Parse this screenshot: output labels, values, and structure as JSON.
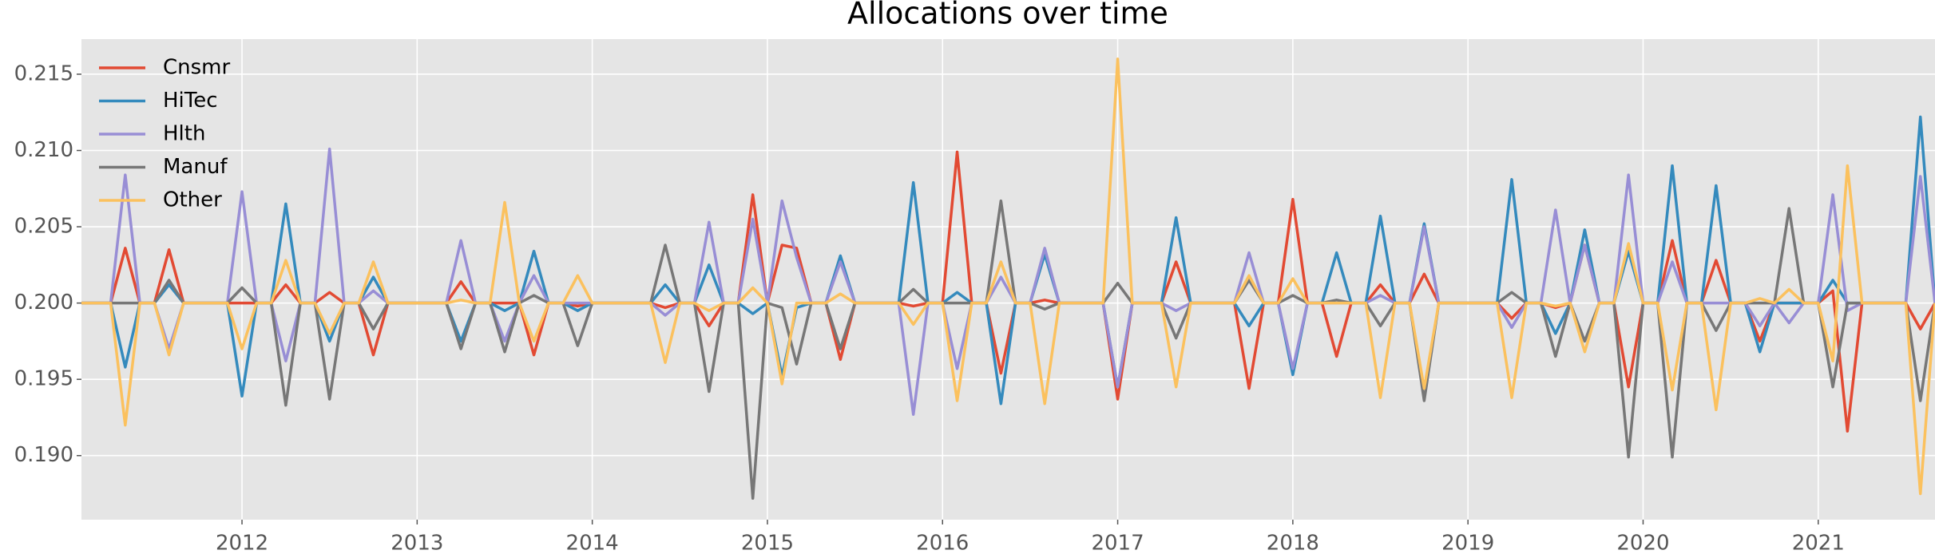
{
  "chart_data": {
    "type": "line",
    "title": "Allocations over time",
    "x": [
      "2011-02",
      "2011-03",
      "2011-04",
      "2011-05",
      "2011-06",
      "2011-07",
      "2011-08",
      "2011-09",
      "2011-10",
      "2011-11",
      "2011-12",
      "2012-01",
      "2012-02",
      "2012-03",
      "2012-04",
      "2012-05",
      "2012-06",
      "2012-07",
      "2012-08",
      "2012-09",
      "2012-10",
      "2012-11",
      "2012-12",
      "2013-01",
      "2013-02",
      "2013-03",
      "2013-04",
      "2013-05",
      "2013-06",
      "2013-07",
      "2013-08",
      "2013-09",
      "2013-10",
      "2013-11",
      "2013-12",
      "2014-01",
      "2014-02",
      "2014-03",
      "2014-04",
      "2014-05",
      "2014-06",
      "2014-07",
      "2014-08",
      "2014-09",
      "2014-10",
      "2014-11",
      "2014-12",
      "2015-01",
      "2015-02",
      "2015-03",
      "2015-04",
      "2015-05",
      "2015-06",
      "2015-07",
      "2015-08",
      "2015-09",
      "2015-10",
      "2015-11",
      "2015-12",
      "2016-01",
      "2016-02",
      "2016-03",
      "2016-04",
      "2016-05",
      "2016-06",
      "2016-07",
      "2016-08",
      "2016-09",
      "2016-10",
      "2016-11",
      "2016-12",
      "2017-01",
      "2017-02",
      "2017-03",
      "2017-04",
      "2017-05",
      "2017-06",
      "2017-07",
      "2017-08",
      "2017-09",
      "2017-10",
      "2017-11",
      "2017-12",
      "2018-01",
      "2018-02",
      "2018-03",
      "2018-04",
      "2018-05",
      "2018-06",
      "2018-07",
      "2018-08",
      "2018-09",
      "2018-10",
      "2018-11",
      "2018-12",
      "2019-01",
      "2019-02",
      "2019-03",
      "2019-04",
      "2019-05",
      "2019-06",
      "2019-07",
      "2019-08",
      "2019-09",
      "2019-10",
      "2019-11",
      "2019-12",
      "2020-01",
      "2020-02",
      "2020-03",
      "2020-04",
      "2020-05",
      "2020-06",
      "2020-07",
      "2020-08",
      "2020-09",
      "2020-10",
      "2020-11",
      "2020-12",
      "2021-01",
      "2021-02",
      "2021-03",
      "2021-04",
      "2021-05",
      "2021-06",
      "2021-07",
      "2021-08",
      "2021-09"
    ],
    "series": [
      {
        "name": "Cnsmr",
        "color": "#E24A33",
        "values": [
          0.2,
          0.2,
          0.2,
          0.2036,
          0.2,
          0.2,
          0.2035,
          0.2,
          0.2,
          0.2,
          0.2,
          0.2,
          0.2,
          0.2,
          0.2012,
          0.2,
          0.2,
          0.2007,
          0.2,
          0.2,
          0.1966,
          0.2,
          0.2,
          0.2,
          0.2,
          0.2,
          0.2014,
          0.2,
          0.2,
          0.2,
          0.2,
          0.1966,
          0.2,
          0.2,
          0.1998,
          0.2,
          0.2,
          0.2,
          0.2,
          0.2,
          0.1997,
          0.2,
          0.2,
          0.1985,
          0.2,
          0.2,
          0.2071,
          0.2,
          0.2038,
          0.2036,
          0.2,
          0.2,
          0.1963,
          0.2,
          0.2,
          0.2,
          0.2,
          0.1998,
          0.2,
          0.2,
          0.2099,
          0.2,
          0.2,
          0.1954,
          0.2,
          0.2,
          0.2002,
          0.2,
          0.2,
          0.2,
          0.2,
          0.1937,
          0.2,
          0.2,
          0.2,
          0.2027,
          0.2,
          0.2,
          0.2,
          0.2,
          0.1944,
          0.2,
          0.2,
          0.2068,
          0.2,
          0.2,
          0.1965,
          0.2,
          0.2,
          0.2012,
          0.2,
          0.2,
          0.2019,
          0.2,
          0.2,
          0.2,
          0.2,
          0.2,
          0.199,
          0.2,
          0.2,
          0.1997,
          0.2,
          0.2038,
          0.2,
          0.2,
          0.1945,
          0.2,
          0.2,
          0.2041,
          0.2,
          0.2,
          0.2028,
          0.2,
          0.2,
          0.1975,
          0.2,
          0.2,
          0.2,
          0.2,
          0.2008,
          0.1916,
          0.2,
          0.2,
          0.2,
          0.2,
          0.1983,
          0.2
        ]
      },
      {
        "name": "HiTec",
        "color": "#348ABD",
        "values": [
          0.2,
          0.2,
          0.2,
          0.1958,
          0.2,
          0.2,
          0.2012,
          0.2,
          0.2,
          0.2,
          0.2,
          0.1939,
          0.2,
          0.2,
          0.2065,
          0.2,
          0.2,
          0.1975,
          0.2,
          0.2,
          0.2017,
          0.2,
          0.2,
          0.2,
          0.2,
          0.2,
          0.1975,
          0.2,
          0.2,
          0.1995,
          0.2,
          0.2034,
          0.2,
          0.2,
          0.1995,
          0.2,
          0.2,
          0.2,
          0.2,
          0.2,
          0.2012,
          0.2,
          0.2,
          0.2025,
          0.2,
          0.2,
          0.1993,
          0.2,
          0.1952,
          0.1997,
          0.2,
          0.2,
          0.2031,
          0.2,
          0.2,
          0.2,
          0.2,
          0.2079,
          0.2,
          0.2,
          0.2007,
          0.2,
          0.2,
          0.1934,
          0.2,
          0.2,
          0.2032,
          0.2,
          0.2,
          0.2,
          0.2,
          0.1945,
          0.2,
          0.2,
          0.2,
          0.2056,
          0.2,
          0.2,
          0.2,
          0.2,
          0.1985,
          0.2,
          0.2,
          0.1953,
          0.2,
          0.2,
          0.2033,
          0.2,
          0.2,
          0.2057,
          0.2,
          0.2,
          0.2052,
          0.2,
          0.2,
          0.2,
          0.2,
          0.2,
          0.2081,
          0.2,
          0.2,
          0.198,
          0.2,
          0.2048,
          0.2,
          0.2,
          0.2034,
          0.2,
          0.2,
          0.209,
          0.2,
          0.2,
          0.2077,
          0.2,
          0.2,
          0.1968,
          0.2,
          0.2,
          0.2,
          0.2,
          0.2015,
          0.2,
          0.2,
          0.2,
          0.2,
          0.2,
          0.2122,
          0.2
        ]
      },
      {
        "name": "Hlth",
        "color": "#988ED5",
        "values": [
          0.2,
          0.2,
          0.2,
          0.2084,
          0.2,
          0.2,
          0.197,
          0.2,
          0.2,
          0.2,
          0.2,
          0.2073,
          0.2,
          0.2,
          0.1962,
          0.2,
          0.2,
          0.2101,
          0.2,
          0.2,
          0.2008,
          0.2,
          0.2,
          0.2,
          0.2,
          0.2,
          0.2041,
          0.2,
          0.2,
          0.1975,
          0.2,
          0.2018,
          0.2,
          0.2,
          0.2,
          0.2,
          0.2,
          0.2,
          0.2,
          0.2,
          0.1992,
          0.2,
          0.2,
          0.2053,
          0.2,
          0.2,
          0.2055,
          0.2,
          0.2067,
          0.203,
          0.2,
          0.2,
          0.2027,
          0.2,
          0.2,
          0.2,
          0.2,
          0.1927,
          0.2,
          0.2,
          0.1957,
          0.2,
          0.2,
          0.2017,
          0.2,
          0.2,
          0.2036,
          0.2,
          0.2,
          0.2,
          0.2,
          0.1945,
          0.2,
          0.2,
          0.2,
          0.1995,
          0.2,
          0.2,
          0.2,
          0.2,
          0.2033,
          0.2,
          0.2,
          0.1957,
          0.2,
          0.2,
          0.2,
          0.2,
          0.2,
          0.2005,
          0.2,
          0.2,
          0.205,
          0.2,
          0.2,
          0.2,
          0.2,
          0.2,
          0.1984,
          0.2,
          0.2,
          0.2061,
          0.2,
          0.2038,
          0.2,
          0.2,
          0.2084,
          0.2,
          0.2,
          0.2027,
          0.2,
          0.2,
          0.2,
          0.2,
          0.2,
          0.1985,
          0.2,
          0.1987,
          0.2,
          0.2,
          0.2071,
          0.1995,
          0.2,
          0.2,
          0.2,
          0.2,
          0.2083,
          0.2
        ]
      },
      {
        "name": "Manuf",
        "color": "#777777",
        "values": [
          0.2,
          0.2,
          0.2,
          0.2,
          0.2,
          0.2,
          0.2015,
          0.2,
          0.2,
          0.2,
          0.2,
          0.201,
          0.2,
          0.2,
          0.1933,
          0.2,
          0.2,
          0.1937,
          0.2,
          0.2,
          0.1983,
          0.2,
          0.2,
          0.2,
          0.2,
          0.2,
          0.197,
          0.2,
          0.2,
          0.1968,
          0.2,
          0.2005,
          0.2,
          0.2,
          0.1972,
          0.2,
          0.2,
          0.2,
          0.2,
          0.2,
          0.2038,
          0.2,
          0.2,
          0.1942,
          0.2,
          0.2,
          0.1872,
          0.2,
          0.1997,
          0.196,
          0.2,
          0.2,
          0.197,
          0.2,
          0.2,
          0.2,
          0.2,
          0.2009,
          0.2,
          0.2,
          0.2,
          0.2,
          0.2,
          0.2067,
          0.2,
          0.2,
          0.1996,
          0.2,
          0.2,
          0.2,
          0.2,
          0.2013,
          0.2,
          0.2,
          0.2,
          0.1977,
          0.2,
          0.2,
          0.2,
          0.2,
          0.2015,
          0.2,
          0.2,
          0.2005,
          0.2,
          0.2,
          0.2002,
          0.2,
          0.2,
          0.1985,
          0.2,
          0.2,
          0.1936,
          0.2,
          0.2,
          0.2,
          0.2,
          0.2,
          0.2007,
          0.2,
          0.2,
          0.1965,
          0.2,
          0.1975,
          0.2,
          0.2,
          0.1899,
          0.2,
          0.2,
          0.1899,
          0.2,
          0.2,
          0.1982,
          0.2,
          0.2,
          0.2,
          0.2,
          0.2062,
          0.2,
          0.2,
          0.1945,
          0.2,
          0.2,
          0.2,
          0.2,
          0.2,
          0.1936,
          0.2
        ]
      },
      {
        "name": "Other",
        "color": "#FBC15E",
        "values": [
          0.2,
          0.2,
          0.2,
          0.192,
          0.2,
          0.2,
          0.1966,
          0.2,
          0.2,
          0.2,
          0.2,
          0.197,
          0.2,
          0.2,
          0.2028,
          0.2,
          0.2,
          0.198,
          0.2,
          0.2,
          0.2027,
          0.2,
          0.2,
          0.2,
          0.2,
          0.2,
          0.2002,
          0.2,
          0.2,
          0.2066,
          0.2,
          0.1975,
          0.2,
          0.2,
          0.2018,
          0.2,
          0.2,
          0.2,
          0.2,
          0.2,
          0.1961,
          0.2,
          0.2,
          0.1995,
          0.2,
          0.2,
          0.201,
          0.2,
          0.1947,
          0.2,
          0.2,
          0.2,
          0.2006,
          0.2,
          0.2,
          0.2,
          0.2,
          0.1986,
          0.2,
          0.2,
          0.1936,
          0.2,
          0.2,
          0.2027,
          0.2,
          0.2,
          0.1934,
          0.2,
          0.2,
          0.2,
          0.2,
          0.216,
          0.2,
          0.2,
          0.2,
          0.1945,
          0.2,
          0.2,
          0.2,
          0.2,
          0.2018,
          0.2,
          0.2,
          0.2016,
          0.2,
          0.2,
          0.2,
          0.2,
          0.2,
          0.1938,
          0.2,
          0.2,
          0.1944,
          0.2,
          0.2,
          0.2,
          0.2,
          0.2,
          0.1938,
          0.2,
          0.2,
          0.1998,
          0.2,
          0.1968,
          0.2,
          0.2,
          0.2039,
          0.2,
          0.2,
          0.1943,
          0.2,
          0.2,
          0.193,
          0.2,
          0.2,
          0.2003,
          0.2,
          0.2009,
          0.2,
          0.2,
          0.1962,
          0.209,
          0.2,
          0.2,
          0.2,
          0.2,
          0.1875,
          0.2
        ]
      }
    ],
    "xlim": [
      "2011-02",
      "2021-09"
    ],
    "xticks": [
      2012,
      2013,
      2014,
      2015,
      2016,
      2017,
      2018,
      2019,
      2020,
      2021
    ],
    "ylim": [
      0.1858,
      0.2173
    ],
    "yticks": [
      {
        "value": 0.19,
        "label": "0.190"
      },
      0.195,
      {
        "value": 0.2,
        "label": "0.200"
      },
      0.205,
      {
        "value": 0.21,
        "label": "0.210"
      },
      0.215
    ],
    "grid": true,
    "legend": "upper left"
  }
}
